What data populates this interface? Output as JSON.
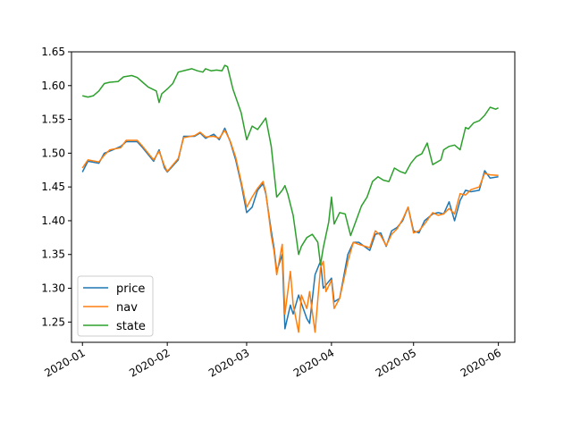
{
  "chart_data": {
    "type": "line",
    "title": "",
    "xlabel": "",
    "ylabel": "",
    "ylim": [
      1.22,
      1.65
    ],
    "y_ticks": [
      1.25,
      1.3,
      1.35,
      1.4,
      1.45,
      1.5,
      1.55,
      1.6,
      1.65
    ],
    "y_tick_labels": [
      "1.25",
      "1.30",
      "1.35",
      "1.40",
      "1.45",
      "1.50",
      "1.55",
      "1.60",
      "1.65"
    ],
    "xlim": [
      -4,
      158
    ],
    "x_ticks": [
      0,
      31,
      60,
      91,
      121,
      152
    ],
    "x_tick_labels": [
      "2020-01",
      "2020-02",
      "2020-03",
      "2020-04",
      "2020-05",
      "2020-06"
    ],
    "x_unit": "days since 2020-01-01",
    "legend_position": "lower-left",
    "series": [
      {
        "name": "price",
        "color": "#1f77b4",
        "x": [
          0,
          2,
          6,
          8,
          10,
          14,
          16,
          20,
          22,
          26,
          28,
          30,
          31,
          35,
          37,
          41,
          43,
          45,
          48,
          50,
          52,
          54,
          56,
          58,
          60,
          62,
          64,
          66,
          67,
          69,
          70,
          71,
          73,
          74,
          76,
          77,
          79,
          80,
          82,
          83,
          85,
          87,
          88,
          89,
          91,
          92,
          94,
          97,
          99,
          101,
          105,
          107,
          109,
          111,
          113,
          115,
          117,
          119,
          121,
          123,
          125,
          128,
          130,
          132,
          134,
          136,
          138,
          140,
          142,
          145,
          147,
          149,
          152
        ],
        "values": [
          1.472,
          1.488,
          1.485,
          1.5,
          1.503,
          1.51,
          1.517,
          1.517,
          1.508,
          1.488,
          1.505,
          1.478,
          1.472,
          1.49,
          1.525,
          1.525,
          1.53,
          1.522,
          1.528,
          1.52,
          1.537,
          1.517,
          1.49,
          1.455,
          1.412,
          1.42,
          1.445,
          1.455,
          1.44,
          1.385,
          1.36,
          1.325,
          1.35,
          1.24,
          1.275,
          1.262,
          1.29,
          1.278,
          1.255,
          1.248,
          1.32,
          1.34,
          1.3,
          1.305,
          1.315,
          1.28,
          1.285,
          1.35,
          1.368,
          1.368,
          1.356,
          1.38,
          1.382,
          1.362,
          1.385,
          1.39,
          1.4,
          1.42,
          1.385,
          1.382,
          1.4,
          1.41,
          1.412,
          1.41,
          1.428,
          1.4,
          1.43,
          1.445,
          1.443,
          1.445,
          1.474,
          1.463,
          1.465
        ]
      },
      {
        "name": "nav",
        "color": "#ff7f0e",
        "x": [
          0,
          2,
          6,
          8,
          10,
          14,
          16,
          20,
          22,
          26,
          28,
          30,
          31,
          35,
          37,
          41,
          43,
          45,
          48,
          50,
          52,
          54,
          56,
          58,
          60,
          62,
          64,
          66,
          67,
          69,
          70,
          71,
          73,
          74,
          76,
          77,
          79,
          80,
          82,
          83,
          85,
          87,
          88,
          89,
          91,
          92,
          94,
          97,
          99,
          101,
          105,
          107,
          109,
          111,
          113,
          115,
          117,
          119,
          121,
          123,
          125,
          128,
          130,
          132,
          134,
          136,
          138,
          140,
          142,
          145,
          147,
          149,
          152
        ],
        "values": [
          1.478,
          1.49,
          1.487,
          1.497,
          1.505,
          1.508,
          1.519,
          1.519,
          1.51,
          1.49,
          1.503,
          1.481,
          1.473,
          1.492,
          1.523,
          1.526,
          1.531,
          1.524,
          1.525,
          1.522,
          1.534,
          1.518,
          1.494,
          1.458,
          1.42,
          1.435,
          1.448,
          1.458,
          1.442,
          1.378,
          1.355,
          1.32,
          1.365,
          1.262,
          1.325,
          1.276,
          1.235,
          1.29,
          1.27,
          1.295,
          1.235,
          1.33,
          1.34,
          1.295,
          1.312,
          1.27,
          1.285,
          1.34,
          1.368,
          1.365,
          1.36,
          1.385,
          1.378,
          1.363,
          1.38,
          1.388,
          1.402,
          1.42,
          1.382,
          1.385,
          1.395,
          1.412,
          1.408,
          1.41,
          1.418,
          1.41,
          1.44,
          1.438,
          1.446,
          1.45,
          1.47,
          1.468,
          1.467
        ]
      },
      {
        "name": "state",
        "color": "#2ca02c",
        "x": [
          0,
          2,
          4,
          6,
          8,
          10,
          13,
          15,
          18,
          20,
          22,
          24,
          27,
          28,
          29,
          31,
          33,
          35,
          38,
          40,
          42,
          44,
          45,
          47,
          49,
          51,
          52,
          53,
          55,
          58,
          60,
          62,
          64,
          67,
          69,
          71,
          73,
          74,
          75,
          77,
          79,
          80,
          82,
          84,
          86,
          87,
          88,
          90,
          91,
          92,
          94,
          96,
          98,
          102,
          104,
          106,
          108,
          110,
          112,
          114,
          116,
          118,
          120,
          122,
          124,
          126,
          128,
          131,
          132,
          134,
          136,
          138,
          140,
          141,
          143,
          145,
          147,
          149,
          151,
          152
        ],
        "values": [
          1.585,
          1.583,
          1.585,
          1.592,
          1.603,
          1.605,
          1.606,
          1.613,
          1.615,
          1.612,
          1.605,
          1.598,
          1.592,
          1.575,
          1.588,
          1.595,
          1.603,
          1.62,
          1.623,
          1.625,
          1.622,
          1.62,
          1.625,
          1.622,
          1.623,
          1.622,
          1.63,
          1.628,
          1.595,
          1.56,
          1.52,
          1.54,
          1.535,
          1.552,
          1.51,
          1.435,
          1.445,
          1.452,
          1.44,
          1.408,
          1.35,
          1.362,
          1.375,
          1.38,
          1.368,
          1.335,
          1.36,
          1.398,
          1.435,
          1.395,
          1.412,
          1.41,
          1.378,
          1.422,
          1.435,
          1.458,
          1.465,
          1.46,
          1.458,
          1.478,
          1.473,
          1.47,
          1.485,
          1.495,
          1.499,
          1.515,
          1.483,
          1.49,
          1.505,
          1.51,
          1.512,
          1.505,
          1.538,
          1.536,
          1.545,
          1.548,
          1.556,
          1.568,
          1.565,
          1.567
        ]
      }
    ]
  }
}
